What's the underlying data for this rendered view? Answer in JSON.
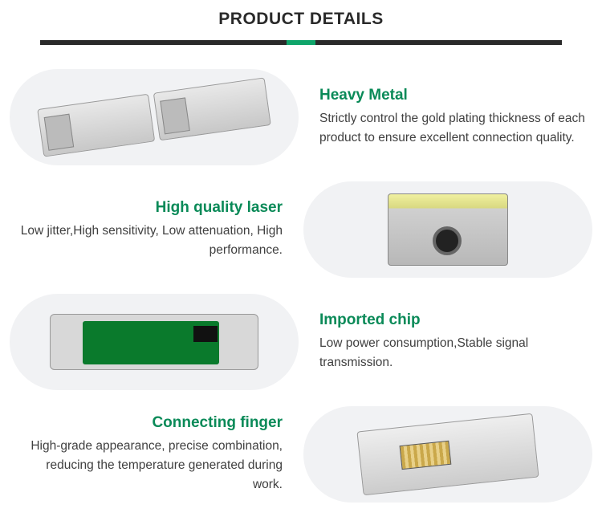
{
  "header": {
    "title": "PRODUCT DETAILS"
  },
  "colors": {
    "accent": "#0a8a58",
    "divider_bg": "#2a2a2a",
    "divider_accent": "#0fa56a",
    "body_text": "#404040",
    "img_bg": "#f1f2f4"
  },
  "features": [
    {
      "title": "Heavy Metal",
      "desc": "Strictly control the gold plating thickness of each product to ensure excellent connection quality.",
      "image_side": "left",
      "image_name": "sfp-modules-pair"
    },
    {
      "title": "High quality laser",
      "desc": "Low jitter,High sensitivity, Low attenuation, High performance.",
      "image_side": "right",
      "image_name": "laser-module-front"
    },
    {
      "title": "Imported chip",
      "desc": "Low power consumption,Stable signal transmission.",
      "image_side": "left",
      "image_name": "pcb-chip-board"
    },
    {
      "title": "Connecting finger",
      "desc": "High-grade appearance, precise combination, reducing the temperature generated during work.",
      "image_side": "right",
      "image_name": "gold-finger-connector"
    }
  ]
}
